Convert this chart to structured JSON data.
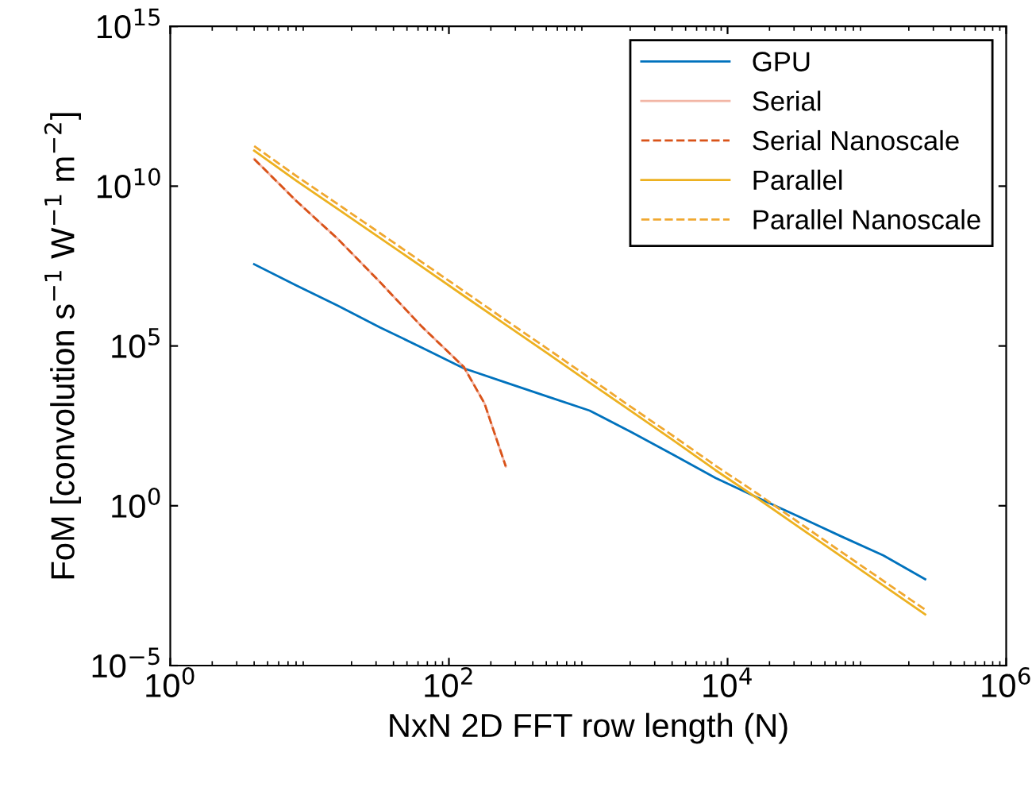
{
  "chart_data": {
    "type": "line",
    "xlabel": "NxN 2D FFT row length (N)",
    "ylabel": "FoM [convolution s$^{−1}$ W$^{−1}$ m$^{−2}$]",
    "log": "xy",
    "xlim": [
      1,
      1000000
    ],
    "ylim": [
      1e-05,
      1000000000000000.0
    ],
    "xticks": [
      {
        "value": 1,
        "label": "10$^{0}$"
      },
      {
        "value": 100,
        "label": "10$^{2}$"
      },
      {
        "value": 10000,
        "label": "10$^{4}$"
      },
      {
        "value": 1000000,
        "label": "10$^{6}$"
      }
    ],
    "yticks": [
      {
        "value": 1e-05,
        "label": "10$^{−5}$"
      },
      {
        "value": 1,
        "label": "10$^{0}$"
      },
      {
        "value": 100000,
        "label": "10$^{5}$"
      },
      {
        "value": 10000000000,
        "label": "10$^{10}$"
      },
      {
        "value": 1000000000000000.0,
        "label": "10$^{15}$"
      }
    ],
    "grid": false,
    "legend": "top right",
    "marker": "none",
    "series": [
      {
        "name": "GPU",
        "color": "#0072bd",
        "line_style": "solid",
        "x": [
          4,
          8,
          16,
          32,
          64,
          128,
          256,
          512,
          1024,
          2048,
          4096,
          8192,
          16384,
          32768,
          65536,
          131072,
          262144
        ],
        "values": [
          36000000.0,
          7900000.0,
          1800000.0,
          380000.0,
          89000.0,
          20000.0,
          7200.0,
          2600.0,
          950,
          200,
          39,
          7.4,
          1.8,
          0.45,
          0.11,
          0.028,
          0.005
        ]
      },
      {
        "name": "Serial",
        "color": "#f2b6a6",
        "line_style": "solid",
        "x": [
          4,
          8,
          16,
          32,
          64,
          128,
          180,
          215,
          256
        ],
        "values": [
          71000000000.0,
          3500000000.0,
          220000000.0,
          10000000.0,
          400000.0,
          22000.0,
          1600.0,
          160,
          17
        ]
      },
      {
        "name": "Serial Nanoscale",
        "color": "#d95319",
        "line_style": "dashed",
        "x": [
          4,
          8,
          16,
          32,
          64,
          128,
          180,
          215,
          256
        ],
        "values": [
          71000000000.0,
          3500000000.0,
          220000000.0,
          10000000.0,
          400000.0,
          22000.0,
          1600.0,
          160,
          17
        ]
      },
      {
        "name": "Parallel",
        "color": "#edb120",
        "line_style": "solid",
        "x": [
          4,
          8,
          16,
          32,
          64,
          128,
          256,
          512,
          1024,
          2048,
          4096,
          8192,
          16384,
          32768,
          65536,
          131072,
          262144
        ],
        "values": [
          130000000000.0,
          15000000000.0,
          1900000000.0,
          240000000.0,
          30000000.0,
          3700000.0,
          460000.0,
          58000.0,
          7100.0,
          890,
          110,
          13,
          1.7,
          0.21,
          0.026,
          0.0032,
          0.0004
        ]
      },
      {
        "name": "Parallel Nanoscale",
        "color": "#f0a830",
        "line_style": "dashed",
        "x": [
          4,
          8,
          16,
          32,
          64,
          128,
          256,
          512,
          1024,
          2048,
          4096,
          8192,
          16384,
          32768,
          65536,
          131072,
          262144
        ],
        "values": [
          180000000000.0,
          21000000000.0,
          2700000000.0,
          340000000.0,
          42000000.0,
          5200000.0,
          640000.0,
          81000.0,
          9900.0,
          1200.0,
          150,
          18,
          2.4,
          0.29,
          0.036,
          0.0045,
          0.00056
        ]
      }
    ]
  }
}
